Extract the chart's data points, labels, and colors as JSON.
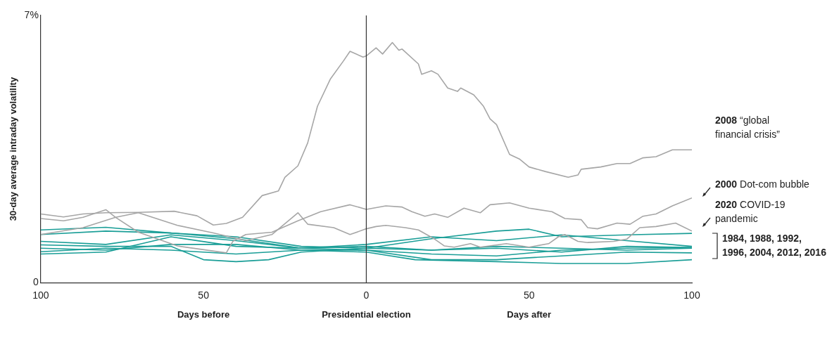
{
  "chart_data": {
    "type": "line",
    "ylabel": "30-day average intraday volatility",
    "xlim": [
      -100,
      100
    ],
    "xticks": [
      {
        "value": -100,
        "label": "100"
      },
      {
        "value": -50,
        "label": "50"
      },
      0,
      50,
      100
    ],
    "ylim": [
      0,
      7
    ],
    "yticks": [
      0,
      {
        "value": 7,
        "label": "7%"
      }
    ],
    "grid": false,
    "legend": false,
    "marker": "none",
    "line_style": "solid",
    "ref_lines": [
      {
        "axis": "x",
        "value": 0,
        "color": "#333333"
      }
    ],
    "annotations": [
      "Days before",
      "Presidential election",
      "Days after",
      {
        "text": "1984, 1988, 1992, 1996, 2004, 2012, 2016",
        "x": 100,
        "y": 0.95
      }
    ],
    "series": [
      {
        "name": "2008 “global financial crisis”",
        "color": "#a6a6a6",
        "x": [
          -100,
          -93,
          -87,
          -80,
          -70,
          -59,
          -52,
          -47,
          -43,
          -38,
          -32,
          -27,
          -25,
          -21,
          -18,
          -15,
          -11,
          -7,
          -5,
          -1,
          0,
          3,
          5,
          8,
          10,
          11,
          16,
          17,
          20,
          22,
          25,
          28,
          29,
          33,
          36,
          38,
          40,
          44,
          47,
          50,
          55,
          62,
          65,
          66,
          72,
          77,
          81,
          85,
          89,
          94,
          100
        ],
        "values": [
          1.8,
          1.72,
          1.8,
          1.83,
          1.84,
          1.87,
          1.75,
          1.51,
          1.55,
          1.71,
          2.28,
          2.4,
          2.76,
          3.06,
          3.66,
          4.62,
          5.34,
          5.81,
          6.06,
          5.91,
          5.94,
          6.15,
          5.99,
          6.29,
          6.09,
          6.12,
          5.73,
          5.46,
          5.55,
          5.46,
          5.1,
          5.01,
          5.1,
          4.92,
          4.62,
          4.29,
          4.14,
          3.36,
          3.24,
          3.03,
          2.91,
          2.76,
          2.82,
          2.97,
          3.03,
          3.12,
          3.12,
          3.27,
          3.3,
          3.48,
          3.48
        ]
      },
      {
        "name": "2000 Dot-com bubble",
        "color": "#a6a6a6",
        "x": [
          -100,
          -93,
          -87,
          -80,
          -77,
          -70,
          -58,
          -43,
          -41,
          -37,
          -29,
          -21,
          -14,
          -5,
          0,
          6,
          11,
          14,
          18,
          21,
          25,
          30,
          35,
          38,
          44,
          50,
          57,
          61,
          66,
          68,
          71,
          77,
          81,
          85,
          89,
          94,
          100
        ],
        "values": [
          1.68,
          1.62,
          1.71,
          1.91,
          1.71,
          1.32,
          0.96,
          0.78,
          1.08,
          1.26,
          1.32,
          1.62,
          1.86,
          2.04,
          1.92,
          2.01,
          1.98,
          1.86,
          1.74,
          1.8,
          1.71,
          1.95,
          1.83,
          2.04,
          2.09,
          1.95,
          1.86,
          1.68,
          1.65,
          1.44,
          1.41,
          1.56,
          1.53,
          1.74,
          1.8,
          2.01,
          2.22
        ]
      },
      {
        "name": "2020 COVID-19 pandemic",
        "color": "#a6a6a6",
        "x": [
          -100,
          -87,
          -77,
          -70,
          -58,
          -47,
          -37,
          -29,
          -21,
          -18,
          -10,
          -5,
          0,
          3,
          6,
          12,
          16,
          21,
          24,
          27,
          32,
          35,
          43,
          50,
          56,
          59,
          61,
          65,
          68,
          76,
          80,
          84,
          89,
          95,
          100
        ],
        "values": [
          1.26,
          1.44,
          1.71,
          1.83,
          1.5,
          1.3,
          1.1,
          1.26,
          1.83,
          1.53,
          1.44,
          1.26,
          1.41,
          1.47,
          1.5,
          1.44,
          1.38,
          1.14,
          0.96,
          0.93,
          1.02,
          0.93,
          1.02,
          0.93,
          1.02,
          1.2,
          1.26,
          1.08,
          1.05,
          1.08,
          1.14,
          1.44,
          1.47,
          1.56,
          1.35
        ]
      },
      {
        "color": "#1a9e97",
        "x": [
          -100,
          -80,
          -60,
          -40,
          -20,
          0,
          20,
          40,
          50,
          60,
          80,
          100
        ],
        "values": [
          1.38,
          1.45,
          1.3,
          1.2,
          0.95,
          0.9,
          1.15,
          1.35,
          1.4,
          1.2,
          1.25,
          1.29
        ]
      },
      {
        "color": "#1a9e97",
        "x": [
          -100,
          -80,
          -60,
          -40,
          -20,
          0,
          20,
          40,
          60,
          80,
          100
        ],
        "values": [
          1.26,
          1.35,
          1.3,
          1.15,
          0.9,
          1.0,
          1.2,
          1.1,
          1.25,
          1.1,
          0.95
        ]
      },
      {
        "color": "#1a9e97",
        "x": [
          -100,
          -80,
          -60,
          -40,
          -20,
          0,
          20,
          40,
          60,
          80,
          100
        ],
        "values": [
          1.08,
          1.0,
          1.25,
          1.1,
          0.9,
          0.95,
          0.85,
          0.9,
          0.8,
          0.95,
          0.92
        ]
      },
      {
        "color": "#1a9e97",
        "x": [
          -100,
          -80,
          -60,
          -50,
          -40,
          -30,
          -20,
          0,
          20,
          40,
          60,
          80,
          100
        ],
        "values": [
          0.99,
          0.95,
          0.95,
          0.6,
          0.55,
          0.6,
          0.8,
          0.9,
          0.85,
          0.95,
          0.9,
          0.85,
          0.9
        ]
      },
      {
        "color": "#1a9e97",
        "x": [
          -100,
          -80,
          -60,
          -40,
          -20,
          0,
          20,
          40,
          60,
          80,
          100
        ],
        "values": [
          0.9,
          0.85,
          1.0,
          1.0,
          0.85,
          0.85,
          0.6,
          0.6,
          0.7,
          0.8,
          0.78
        ]
      },
      {
        "color": "#1a9e97",
        "x": [
          -100,
          -80,
          -60,
          -40,
          -20,
          0,
          15,
          40,
          60,
          80,
          100
        ],
        "values": [
          0.81,
          0.9,
          0.85,
          0.75,
          0.85,
          0.8,
          0.6,
          0.55,
          0.5,
          0.5,
          0.6
        ]
      },
      {
        "color": "#1a9e97",
        "x": [
          -100,
          -80,
          -60,
          -40,
          -20,
          0,
          20,
          40,
          60,
          80,
          100
        ],
        "values": [
          0.75,
          0.8,
          1.2,
          0.95,
          0.9,
          0.85,
          0.75,
          0.7,
          0.85,
          0.9,
          0.92
        ]
      }
    ]
  }
}
